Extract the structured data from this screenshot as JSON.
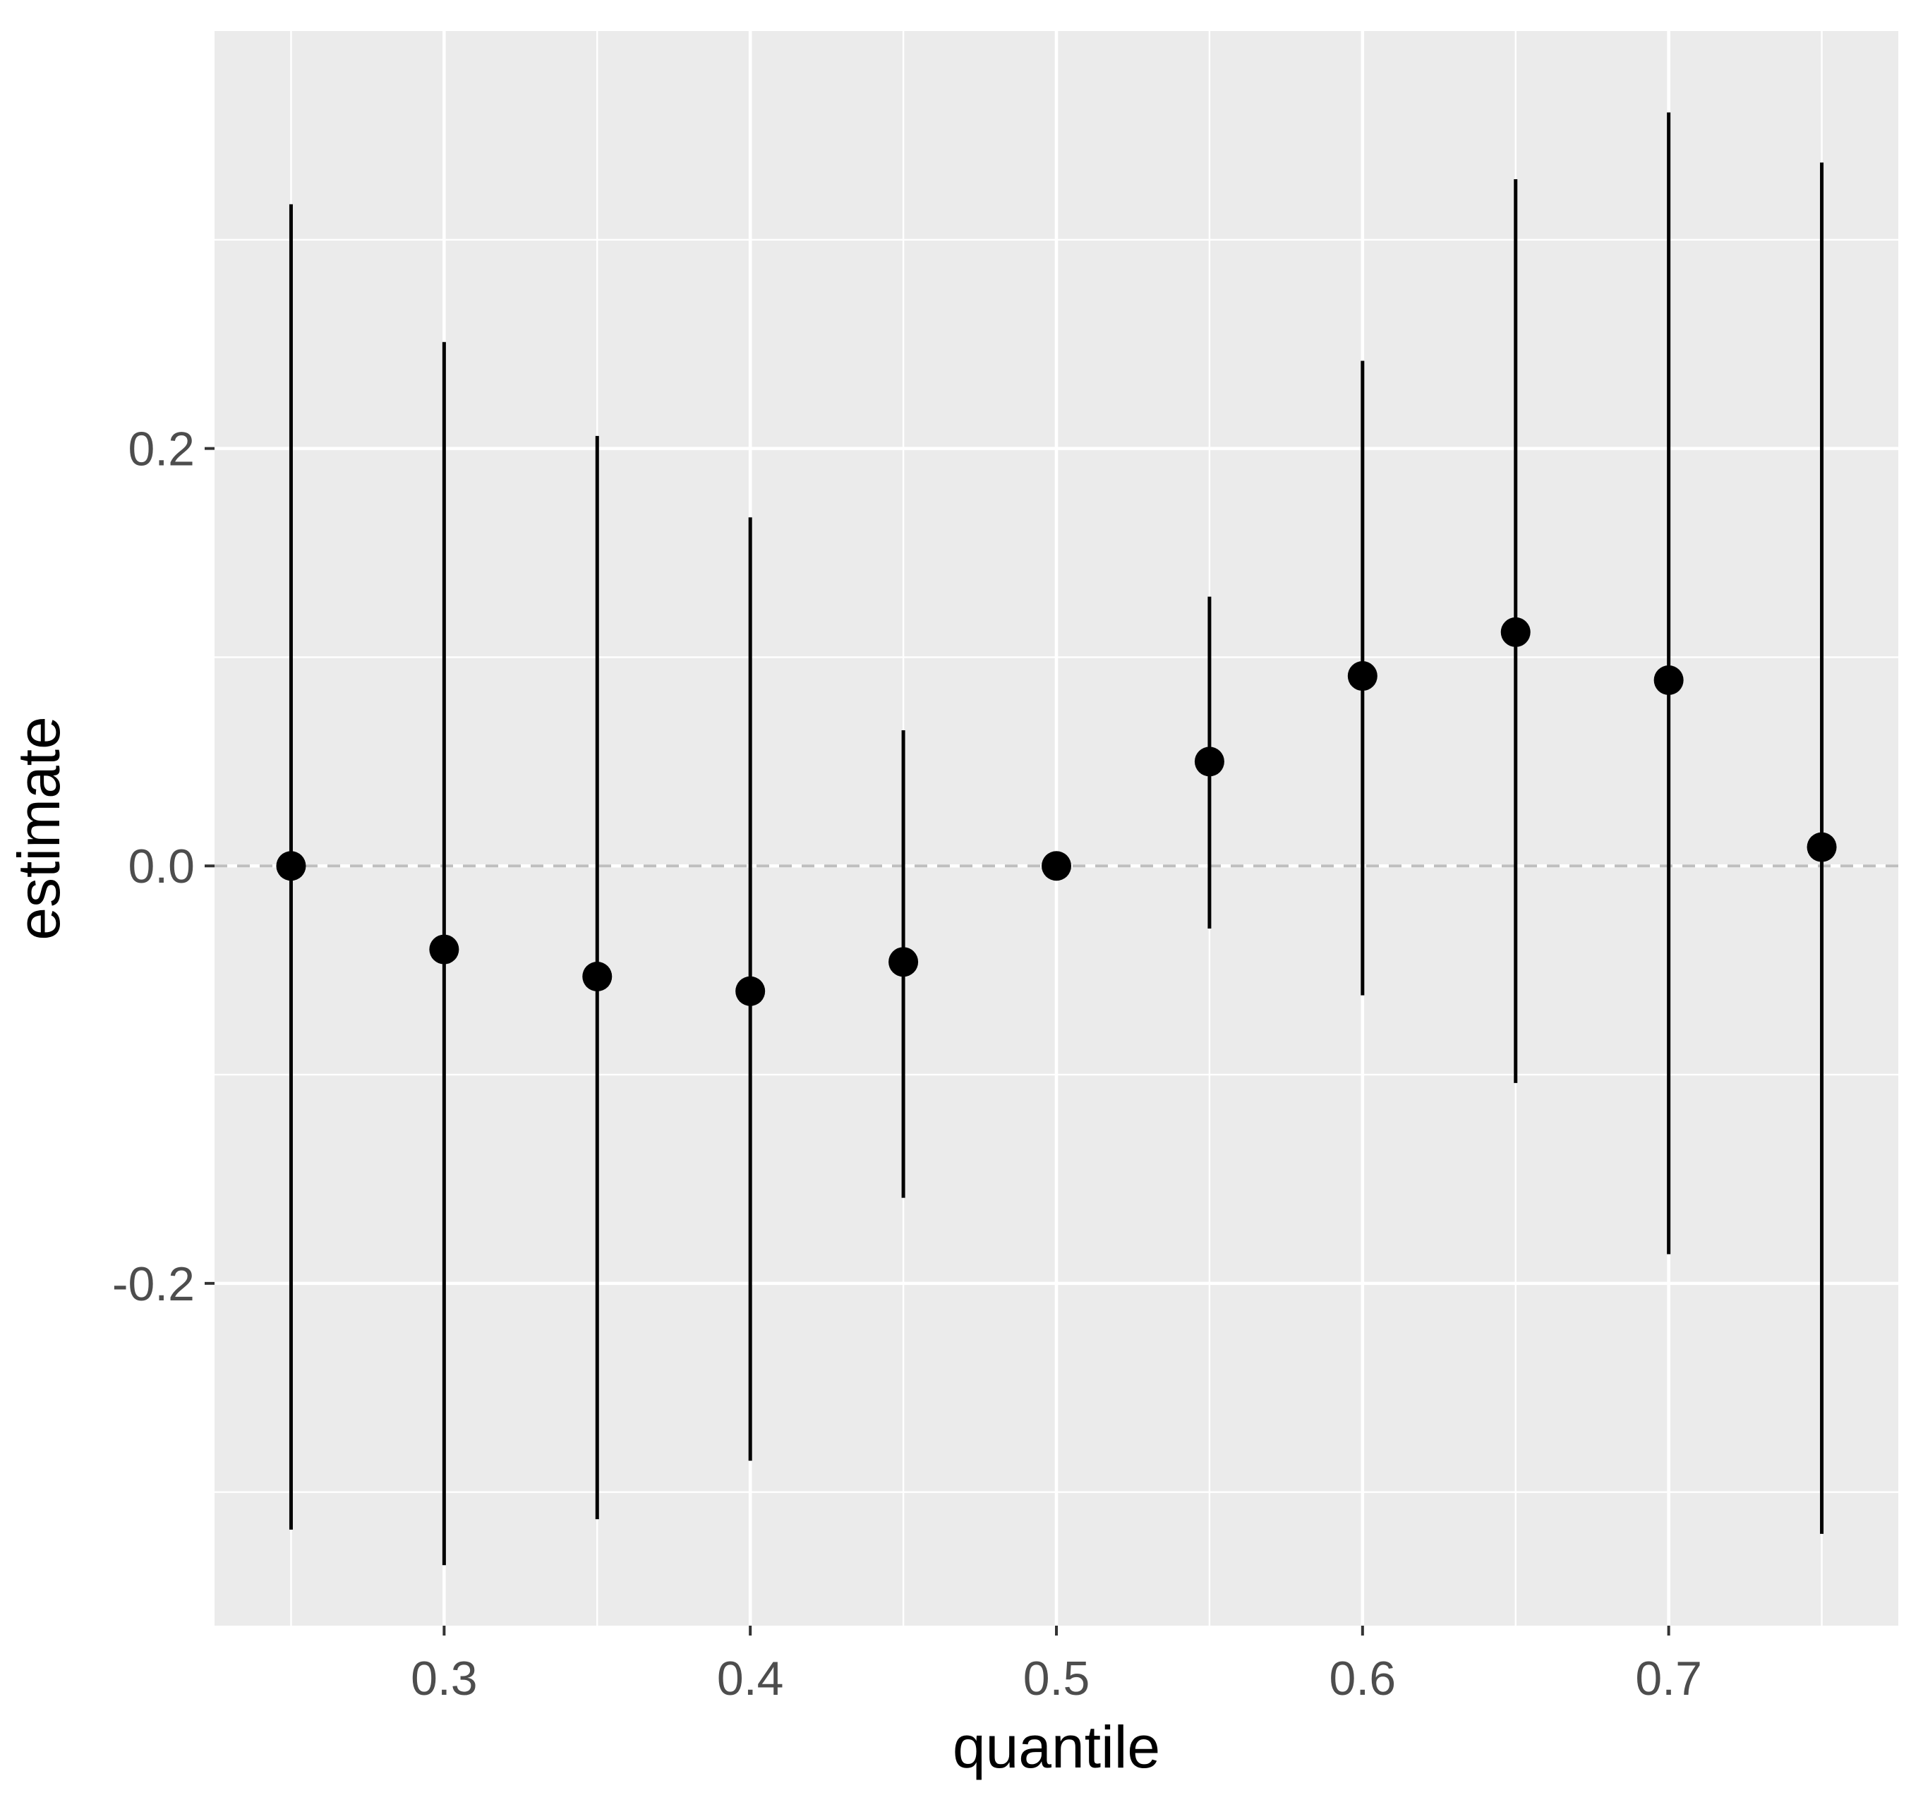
{
  "chart_data": {
    "type": "scatter",
    "geom": "pointrange",
    "xlabel": "quantile",
    "ylabel": "estimate",
    "xlim": [
      0.225,
      0.775
    ],
    "ylim": [
      -0.364,
      0.4
    ],
    "x_ticks": [
      0.3,
      0.4,
      0.5,
      0.6,
      0.7
    ],
    "x_tick_labels": [
      "0.3",
      "0.4",
      "0.5",
      "0.6",
      "0.7"
    ],
    "y_ticks": [
      -0.2,
      0.0,
      0.2
    ],
    "y_tick_labels": [
      "-0.2",
      "0.0",
      "0.2"
    ],
    "x_minor_ticks": [
      0.25,
      0.35,
      0.45,
      0.55,
      0.65,
      0.75
    ],
    "y_minor_ticks": [
      -0.3,
      -0.1,
      0.1,
      0.3
    ],
    "reference_line": {
      "y": 0.0,
      "style": "dashed",
      "color": "#bebebe"
    },
    "grid": true,
    "panel_background": "#ebebeb",
    "grid_color": "#ffffff",
    "point_color": "#000000",
    "points": [
      {
        "x": 0.25,
        "y": 0.0,
        "ymin": -0.318,
        "ymax": 0.317
      },
      {
        "x": 0.3,
        "y": -0.04,
        "ymin": -0.335,
        "ymax": 0.251
      },
      {
        "x": 0.35,
        "y": -0.053,
        "ymin": -0.313,
        "ymax": 0.206
      },
      {
        "x": 0.4,
        "y": -0.06,
        "ymin": -0.285,
        "ymax": 0.167
      },
      {
        "x": 0.45,
        "y": -0.046,
        "ymin": -0.159,
        "ymax": 0.065
      },
      {
        "x": 0.5,
        "y": 0.0,
        "ymin": 0.0,
        "ymax": 0.0
      },
      {
        "x": 0.55,
        "y": 0.05,
        "ymin": -0.03,
        "ymax": 0.129
      },
      {
        "x": 0.6,
        "y": 0.091,
        "ymin": -0.062,
        "ymax": 0.242
      },
      {
        "x": 0.65,
        "y": 0.112,
        "ymin": -0.104,
        "ymax": 0.329
      },
      {
        "x": 0.7,
        "y": 0.089,
        "ymin": -0.186,
        "ymax": 0.361
      },
      {
        "x": 0.75,
        "y": 0.009,
        "ymin": -0.32,
        "ymax": 0.337
      }
    ]
  }
}
